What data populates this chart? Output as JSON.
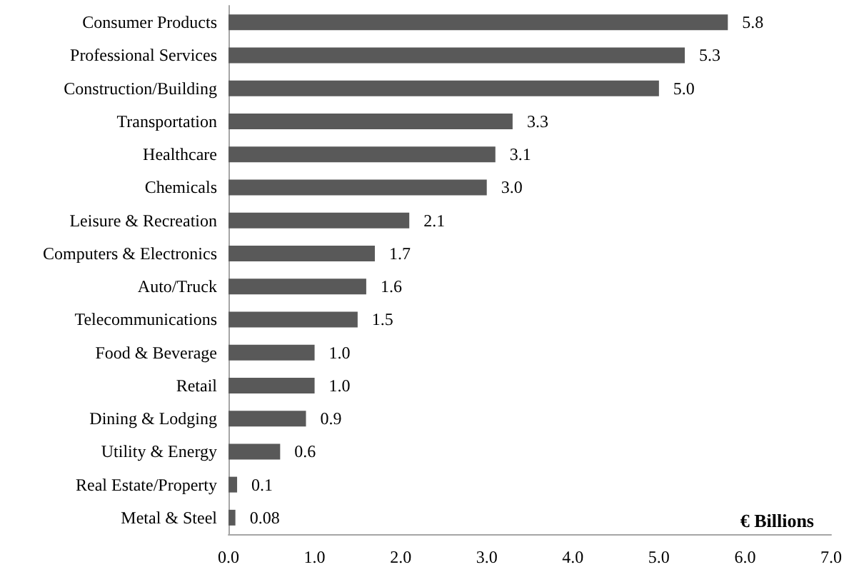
{
  "chart_data": {
    "type": "bar",
    "orientation": "horizontal",
    "xlabel": "€ Billions",
    "categories": [
      "Consumer Products",
      "Professional Services",
      "Construction/Building",
      "Transportation",
      "Healthcare",
      "Chemicals",
      "Leisure & Recreation",
      "Computers & Electronics",
      "Auto/Truck",
      "Telecommunications",
      "Food & Beverage",
      "Retail",
      "Dining & Lodging",
      "Utility & Energy",
      "Real Estate/Property",
      "Metal & Steel"
    ],
    "values": [
      5.8,
      5.3,
      5.0,
      3.3,
      3.1,
      3.0,
      2.1,
      1.7,
      1.6,
      1.5,
      1.0,
      1.0,
      0.9,
      0.6,
      0.1,
      0.08
    ],
    "value_labels": [
      "5.8",
      "5.3",
      "5.0",
      "3.3",
      "3.1",
      "3.0",
      "2.1",
      "1.7",
      "1.6",
      "1.5",
      "1.0",
      "1.0",
      "0.9",
      "0.6",
      "0.1",
      "0.08"
    ],
    "color": "#595959",
    "xlim": [
      0,
      7
    ],
    "xticks": [
      {
        "value": 0,
        "label": "0.0"
      },
      {
        "value": 1,
        "label": "1.0"
      },
      {
        "value": 2,
        "label": "2.0"
      },
      {
        "value": 3,
        "label": "3.0"
      },
      {
        "value": 4,
        "label": "4.0"
      },
      {
        "value": 5,
        "label": "5.0"
      },
      {
        "value": 6,
        "label": "6.0"
      },
      {
        "value": 7,
        "label": "7.0"
      }
    ],
    "grid": false
  }
}
